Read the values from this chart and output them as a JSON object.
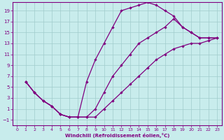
{
  "xlabel": "Windchill (Refroidissement éolien,°C)",
  "bg_color": "#c8ecec",
  "line_color": "#800080",
  "grid_color": "#a0cccc",
  "xlim": [
    -0.5,
    23.5
  ],
  "ylim": [
    -2,
    20.5
  ],
  "xticks": [
    0,
    1,
    2,
    3,
    4,
    5,
    6,
    7,
    8,
    9,
    10,
    11,
    12,
    13,
    14,
    15,
    16,
    17,
    18,
    19,
    20,
    21,
    22,
    23
  ],
  "yticks": [
    -1,
    1,
    3,
    5,
    7,
    9,
    11,
    13,
    15,
    17,
    19
  ],
  "curve1_x": [
    1,
    2,
    3,
    4,
    5,
    6,
    7,
    8,
    9,
    10,
    11,
    12,
    13,
    14,
    15,
    16,
    17,
    18,
    19,
    20,
    21,
    22,
    23
  ],
  "curve1_y": [
    6,
    4,
    2.5,
    1.5,
    0,
    -0.5,
    -0.5,
    6,
    10,
    13,
    16,
    19,
    19.5,
    20,
    20.5,
    20,
    19,
    18,
    16,
    15,
    14,
    14,
    14
  ],
  "curve2_x": [
    1,
    2,
    3,
    4,
    5,
    6,
    7,
    8,
    9,
    10,
    11,
    12,
    13,
    14,
    15,
    16,
    17,
    18,
    19,
    20,
    21,
    22,
    23
  ],
  "curve2_y": [
    6,
    4,
    2.5,
    1.5,
    0,
    -0.5,
    -0.5,
    -0.5,
    1,
    4,
    7,
    9,
    11,
    13,
    14,
    15,
    16,
    17.5,
    16,
    15,
    14,
    14,
    14
  ],
  "curve3_x": [
    1,
    2,
    3,
    4,
    5,
    6,
    7,
    8,
    9,
    10,
    11,
    12,
    13,
    14,
    15,
    16,
    17,
    18,
    19,
    20,
    21,
    22,
    23
  ],
  "curve3_y": [
    6,
    4,
    2.5,
    1.5,
    0,
    -0.5,
    -0.5,
    -0.5,
    -0.5,
    1,
    2.5,
    4,
    5.5,
    7,
    8.5,
    10,
    11,
    12,
    12.5,
    13,
    13,
    13.5,
    14
  ]
}
